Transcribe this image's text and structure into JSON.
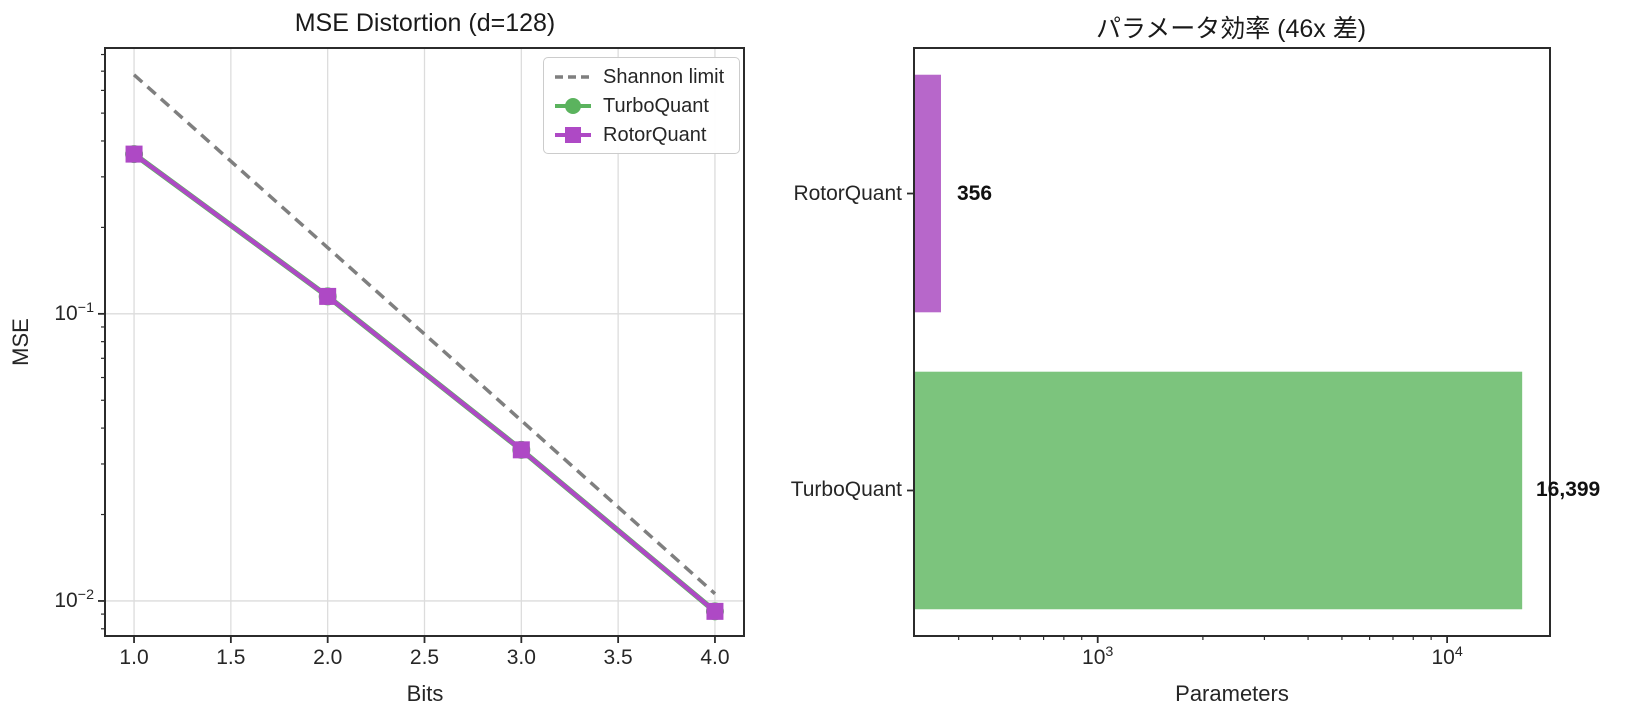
{
  "style": {
    "background": "#ffffff",
    "text_color": "#262626",
    "spine_color": "#2b2b2b",
    "grid_color": "#dcdcdc",
    "tick_color": "#2b2b2b",
    "legend_border": "#cccccc"
  },
  "chart_data": [
    {
      "type": "line",
      "title": "MSE Distortion (d=128)",
      "xlabel": "Bits",
      "ylabel": "MSE",
      "xscale": "linear",
      "yscale": "log",
      "xlim": [
        0.85,
        4.15
      ],
      "ylim": [
        0.00755,
        0.843
      ],
      "grid": true,
      "legend_position": "upper right",
      "x": [
        1.0,
        2.0,
        3.0,
        4.0
      ],
      "series": [
        {
          "name": "Shannon limit",
          "values": [
            0.68,
            0.17,
            0.0425,
            0.0106
          ],
          "color": "#7f7f7f",
          "line": "dashed",
          "marker": "none",
          "width": 3.5
        },
        {
          "name": "TurboQuant",
          "values": [
            0.36,
            0.115,
            0.0336,
            0.0092
          ],
          "color": "#5bb35e",
          "line": "solid",
          "marker": "circle",
          "width": 5.5
        },
        {
          "name": "RotorQuant",
          "values": [
            0.36,
            0.115,
            0.0336,
            0.0092
          ],
          "color": "#ae49c5",
          "line": "solid",
          "marker": "square",
          "width": 4.2
        }
      ],
      "xticks": [
        {
          "value": 1.0,
          "label": "1.0"
        },
        {
          "value": 1.5,
          "label": "1.5"
        },
        {
          "value": 2.0,
          "label": "2.0"
        },
        {
          "value": 2.5,
          "label": "2.5"
        },
        {
          "value": 3.0,
          "label": "3.0"
        },
        {
          "value": 3.5,
          "label": "3.5"
        },
        {
          "value": 4.0,
          "label": "4.0"
        }
      ],
      "yticks": [
        {
          "value": 0.1,
          "base": "10",
          "exp": "−1"
        },
        {
          "value": 0.01,
          "base": "10",
          "exp": "−2"
        }
      ],
      "yminorticks": [
        0.8,
        0.7,
        0.6,
        0.5,
        0.4,
        0.3,
        0.2,
        0.09,
        0.08,
        0.07,
        0.06,
        0.05,
        0.04,
        0.03,
        0.02,
        0.009,
        0.008
      ]
    },
    {
      "type": "bar",
      "orientation": "horizontal",
      "title": "パラメータ効率 (46x 差)",
      "xlabel": "Parameters",
      "xscale": "log",
      "xlim": [
        298,
        19700
      ],
      "grid": false,
      "categories": [
        "RotorQuant",
        "TurboQuant"
      ],
      "values": [
        356,
        16399
      ],
      "value_labels": [
        "356",
        "16,399"
      ],
      "bar_colors": [
        "#b767ca",
        "#7cc47d"
      ],
      "bar_height_fraction": 0.8,
      "xticks": [
        {
          "value": 1000,
          "base": "10",
          "exp": "3"
        },
        {
          "value": 10000,
          "base": "10",
          "exp": "4"
        }
      ],
      "xminorticks": [
        400,
        500,
        600,
        700,
        800,
        900,
        2000,
        3000,
        4000,
        5000,
        6000,
        7000,
        8000,
        9000
      ]
    }
  ]
}
